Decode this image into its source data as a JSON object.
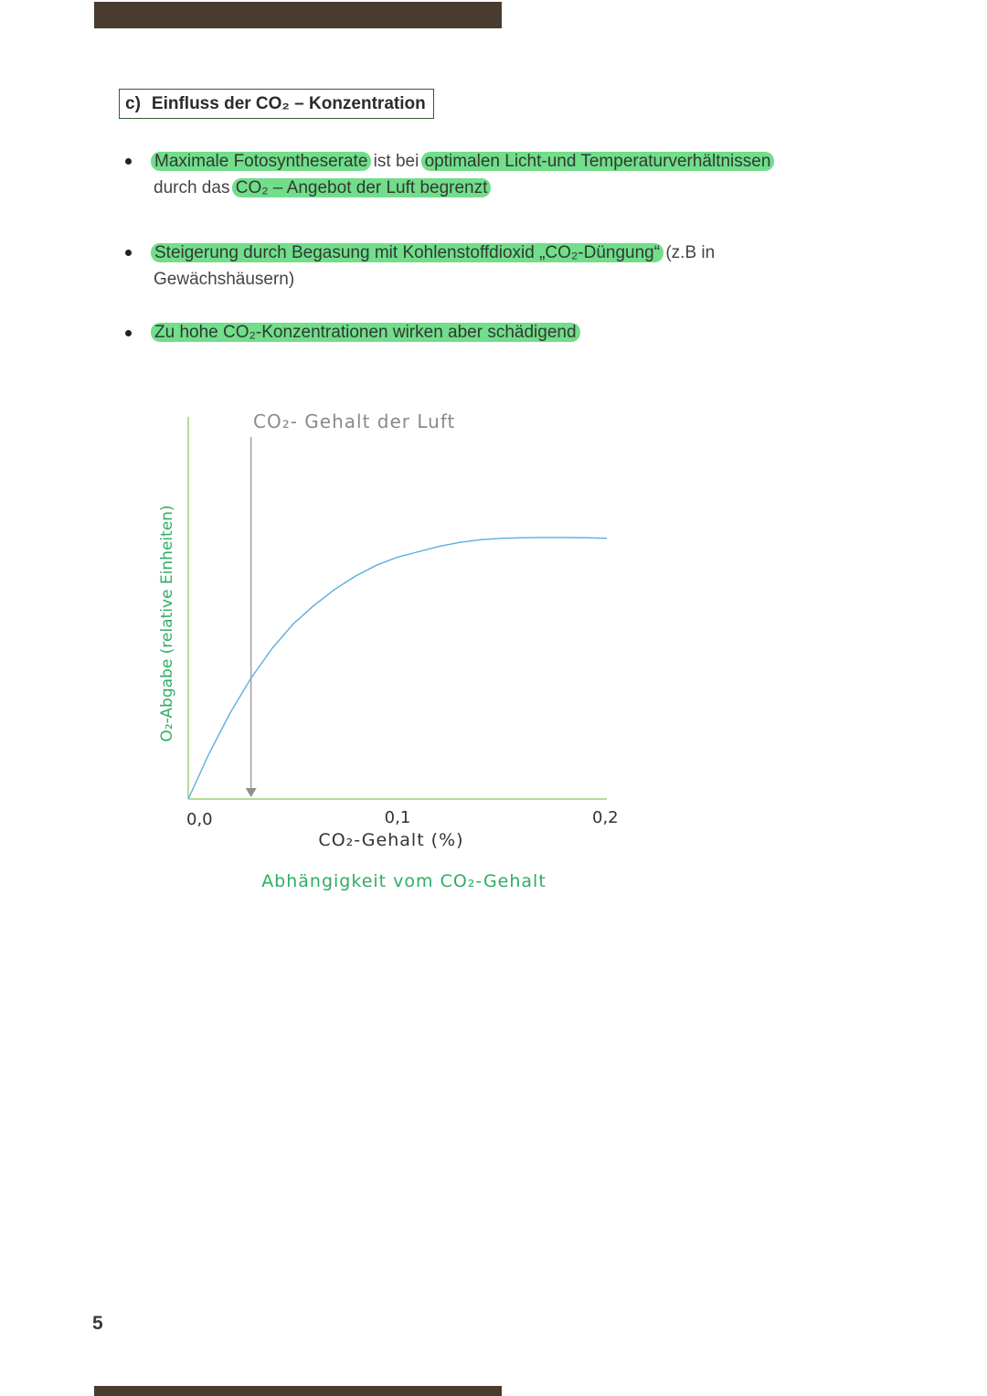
{
  "header_bar_color": "#4a3b2f",
  "section": {
    "label": "c)",
    "title": "Einfluss der CO₂ – Konzentration"
  },
  "bullets": [
    {
      "parts": [
        {
          "text": "Maximale Fotosyntheserate",
          "hl": true
        },
        {
          "text": " ist bei ",
          "hl": false
        },
        {
          "text": "optimalen Licht-und Temperaturverhältnissen",
          "hl": true
        },
        {
          "text": " durch das ",
          "hl": false
        },
        {
          "text": "CO₂ – Angebot der Luft begrenzt",
          "hl": true
        }
      ]
    },
    {
      "parts": [
        {
          "text": "Steigerung durch Begasung mit Kohlenstoffdioxid „CO₂-Düngung“",
          "hl": true
        },
        {
          "text": " (z.B in Gewächshäusern)",
          "hl": false
        }
      ]
    },
    {
      "parts": [
        {
          "text": "Zu hohe CO₂-Konzentrationen wirken aber schädigend",
          "hl": true
        }
      ]
    }
  ],
  "highlight_color": "#72dd8a",
  "chart_data": {
    "type": "line",
    "title": "Abhängigkeit vom CO₂-Gehalt",
    "xlabel": "CO₂-Gehalt (%)",
    "ylabel": "O₂-Abgabe (relative Einheiten)",
    "xlim": [
      0,
      0.2
    ],
    "ylim": [
      0,
      1
    ],
    "x_ticks": [
      "0,0",
      "0,1",
      "0,2"
    ],
    "grid": false,
    "series": [
      {
        "color": "#5aaee0",
        "x": [
          0.0,
          0.01,
          0.02,
          0.03,
          0.04,
          0.05,
          0.06,
          0.07,
          0.08,
          0.09,
          0.1,
          0.11,
          0.12,
          0.13,
          0.14,
          0.15,
          0.16,
          0.17,
          0.18,
          0.19,
          0.2
        ],
        "y": [
          0.0,
          0.17,
          0.32,
          0.45,
          0.56,
          0.65,
          0.72,
          0.78,
          0.83,
          0.87,
          0.9,
          0.92,
          0.94,
          0.955,
          0.965,
          0.97,
          0.972,
          0.973,
          0.973,
          0.972,
          0.97
        ]
      }
    ],
    "annotation": {
      "text": "CO₂- Gehalt der Luft",
      "x": 0.03
    },
    "axis_color": "#9bd07a",
    "annotation_color": "#8a8a8a",
    "label_color": "#2fae63"
  },
  "page_number": "5"
}
